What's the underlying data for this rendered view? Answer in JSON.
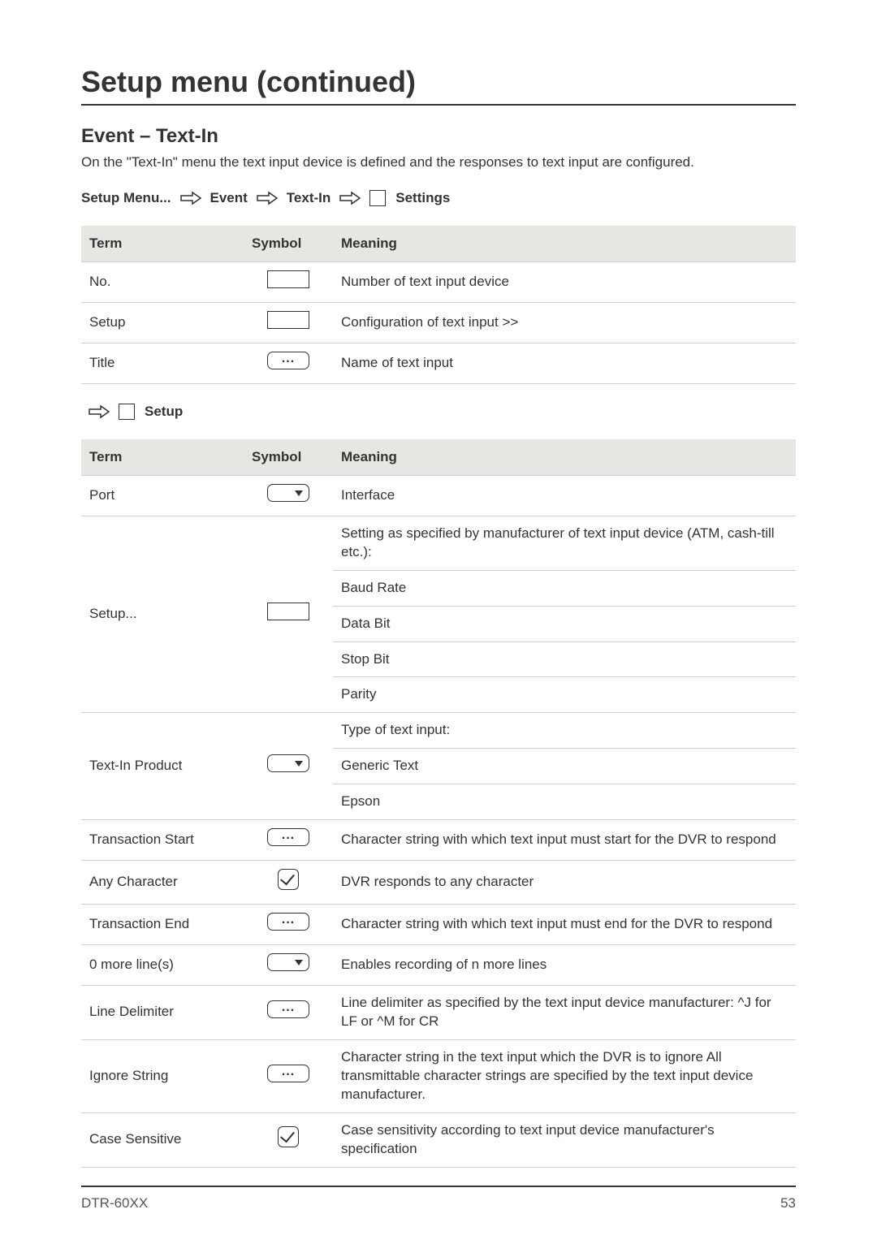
{
  "page": {
    "title": "Setup menu (continued)",
    "subtitle": "Event – Text-In",
    "intro": "On the \"Text-In\" menu the text input device is defined and the responses to text input are configured.",
    "footer_model": "DTR-60XX",
    "footer_page": "53"
  },
  "breadcrumb": {
    "items": [
      "Setup Menu...",
      "Event",
      "Text-In",
      "Settings"
    ]
  },
  "table1": {
    "headers": {
      "term": "Term",
      "symbol": "Symbol",
      "meaning": "Meaning"
    },
    "rows": [
      {
        "term": "No.",
        "symbol": "rect",
        "meaning": "Number of text input device"
      },
      {
        "term": "Setup",
        "symbol": "rect",
        "meaning": "Configuration of text input >>"
      },
      {
        "term": "Title",
        "symbol": "pill-dots",
        "meaning": "Name of text input"
      }
    ]
  },
  "sub_breadcrumb": {
    "label": "Setup"
  },
  "table2": {
    "headers": {
      "term": "Term",
      "symbol": "Symbol",
      "meaning": "Meaning"
    },
    "rows": [
      {
        "term": "Port",
        "symbol": "pill-drop",
        "meaning": "Interface"
      },
      {
        "term": "Setup...",
        "symbol": "rect",
        "meaning_lines": [
          "Setting as specified by manufacturer of text input device (ATM, cash-till etc.):",
          "Baud Rate",
          "Data Bit",
          "Stop Bit",
          "Parity"
        ]
      },
      {
        "term": "Text-In Product",
        "symbol": "pill-drop",
        "meaning_lines": [
          "Type of text input:",
          "Generic Text",
          "Epson"
        ]
      },
      {
        "term": "Transaction Start",
        "symbol": "pill-dots",
        "meaning": "Character string with which text input must start for the DVR to respond"
      },
      {
        "term": "Any Character",
        "symbol": "check",
        "meaning": "DVR responds to any character"
      },
      {
        "term": "Transaction End",
        "symbol": "pill-dots",
        "meaning": "Character string with which text input must end for the DVR to respond"
      },
      {
        "term": "0 more line(s)",
        "symbol": "pill-drop",
        "meaning": "Enables recording of n more lines"
      },
      {
        "term": "Line Delimiter",
        "symbol": "pill-dots",
        "meaning": "Line delimiter as specified by the text input device manufacturer: ^J for LF or ^M for CR"
      },
      {
        "term": "Ignore String",
        "symbol": "pill-dots",
        "meaning": "Character string in the text input which the DVR is to ignore All transmittable character strings are specified by the text input device manufacturer."
      },
      {
        "term": "Case Sensitive",
        "symbol": "check",
        "meaning": "Case sensitivity according to text input device manufacturer's specification"
      }
    ]
  },
  "colors": {
    "header_bg": "#e8e6e2",
    "border": "#cfcfcf",
    "text": "#333333",
    "page_bg": "#ffffff"
  }
}
